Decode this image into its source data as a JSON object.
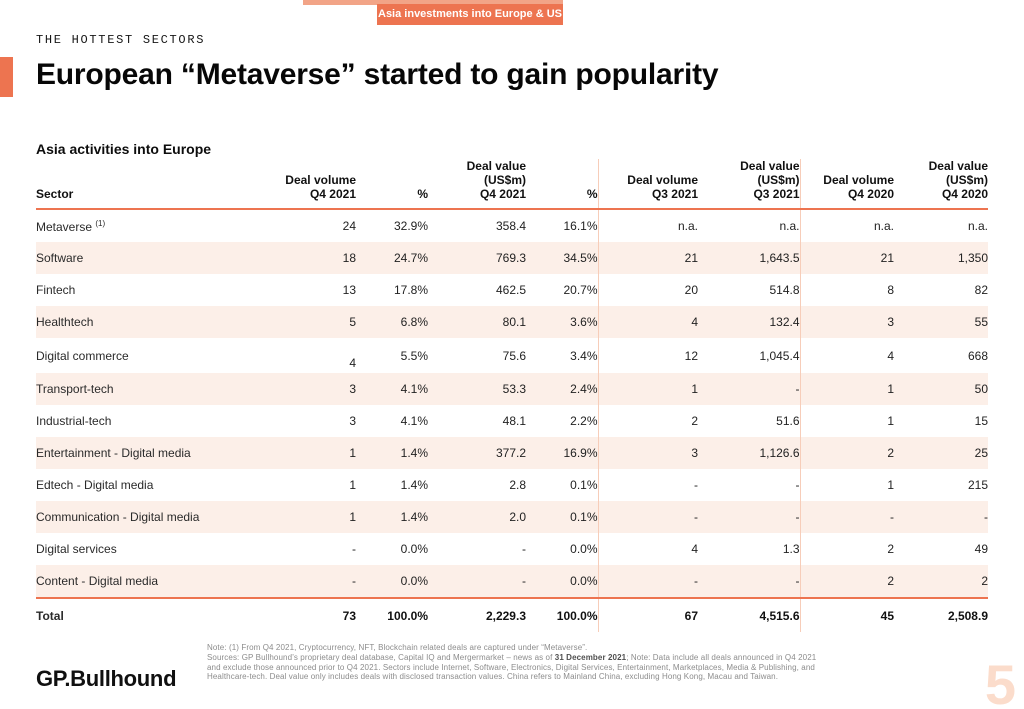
{
  "colors": {
    "accent": "#ED7450",
    "accent_light": "#F2A487",
    "row_alt": "#FCEFE8",
    "divider": "#F7CDB9",
    "note": "#8C8C8C",
    "page_num": "#FBDCCB"
  },
  "header": {
    "badge": "Asia investments into Europe & US",
    "eyebrow": "THE HOTTEST SECTORS",
    "title": "European “Metaverse” started to gain popularity",
    "section_label": "Asia activities into Europe"
  },
  "table": {
    "columns": [
      {
        "label": "Sector"
      },
      {
        "label": "Deal volume\nQ4 2021"
      },
      {
        "label": "%"
      },
      {
        "label": "Deal value\n(US$m)\nQ4 2021"
      },
      {
        "label": "%"
      },
      {
        "label": "Deal volume\nQ3 2021"
      },
      {
        "label": "Deal value\n(US$m)\nQ3 2021"
      },
      {
        "label": "Deal volume\nQ4 2020"
      },
      {
        "label": "Deal value\n(US$m)\nQ4 2020"
      }
    ],
    "rows": [
      {
        "sector": "Metaverse",
        "sector_sup": "(1)",
        "values": [
          "24",
          "32.9%",
          "358.4",
          "16.1%",
          "n.a.",
          "n.a.",
          "n.a.",
          "n.a."
        ]
      },
      {
        "sector": "Software",
        "values": [
          "18",
          "24.7%",
          "769.3",
          "34.5%",
          "21",
          "1,643.5",
          "21",
          "1,350"
        ]
      },
      {
        "sector": "Fintech",
        "values": [
          "13",
          "17.8%",
          "462.5",
          "20.7%",
          "20",
          "514.8",
          "8",
          "82"
        ]
      },
      {
        "sector": "Healthtech",
        "values": [
          "5",
          "6.8%",
          "80.1",
          "3.6%",
          "4",
          "132.4",
          "3",
          "55"
        ]
      },
      {
        "sector": "Digital commerce",
        "volume_offset": true,
        "values": [
          "4",
          "5.5%",
          "75.6",
          "3.4%",
          "12",
          "1,045.4",
          "4",
          "668"
        ]
      },
      {
        "sector": "Transport-tech",
        "values": [
          "3",
          "4.1%",
          "53.3",
          "2.4%",
          "1",
          "-",
          "1",
          "50"
        ]
      },
      {
        "sector": "Industrial-tech",
        "values": [
          "3",
          "4.1%",
          "48.1",
          "2.2%",
          "2",
          "51.6",
          "1",
          "15"
        ]
      },
      {
        "sector": "Entertainment - Digital media",
        "values": [
          "1",
          "1.4%",
          "377.2",
          "16.9%",
          "3",
          "1,126.6",
          "2",
          "25"
        ]
      },
      {
        "sector": "Edtech - Digital media",
        "values": [
          "1",
          "1.4%",
          "2.8",
          "0.1%",
          "-",
          "-",
          "1",
          "215"
        ]
      },
      {
        "sector": "Communication - Digital media",
        "values": [
          "1",
          "1.4%",
          "2.0",
          "0.1%",
          "-",
          "-",
          "-",
          "-"
        ]
      },
      {
        "sector": "Digital services",
        "values": [
          "-",
          "0.0%",
          "-",
          "0.0%",
          "4",
          "1.3",
          "2",
          "49"
        ]
      },
      {
        "sector": "Content - Digital media",
        "values": [
          "-",
          "0.0%",
          "-",
          "0.0%",
          "-",
          "-",
          "2",
          "2"
        ]
      }
    ],
    "total": {
      "sector": "Total",
      "values": [
        "73",
        "100.0%",
        "2,229.3",
        "100.0%",
        "67",
        "4,515.6",
        "45",
        "2,508.9"
      ]
    }
  },
  "notes": {
    "line1": "Note: (1) From Q4 2021, Cryptocurrency, NFT, Blockchain related deals are captured under “Metaverse”.",
    "line2_pre": "Sources: GP Bullhound’s proprietary deal database, Capital IQ and Mergermarket – news as of ",
    "line2_bold": "31 December 2021",
    "line2_post": "; Note: Data include all deals announced in Q4 2021",
    "line3": "and exclude those announced prior to Q4 2021. Sectors include Internet, Software, Electronics, Digital Services, Entertainment, Marketplaces, Media & Publishing, and",
    "line4": "Healthcare-tech. Deal value only includes deals with disclosed transaction values. China refers to Mainland China, excluding Hong Kong, Macau and Taiwan."
  },
  "footer": {
    "logo": "GP.Bullhound",
    "page_number": "5"
  }
}
